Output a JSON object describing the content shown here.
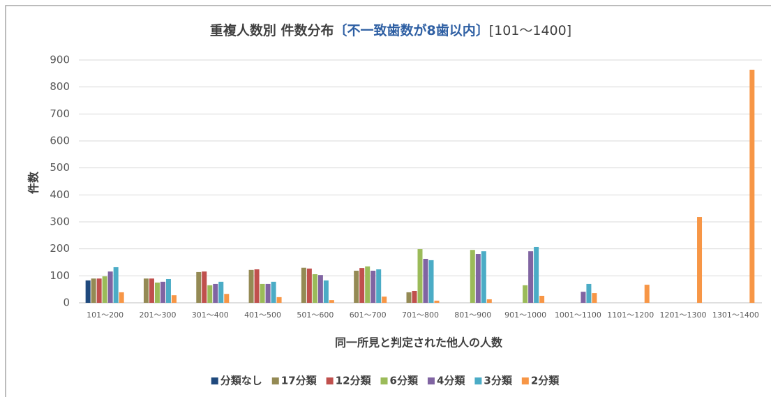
{
  "chart_data": {
    "type": "bar",
    "title": [
      "重複人数別 件数分布",
      "〔不一致歯数が8歯以内〕",
      "[101～1400]"
    ],
    "xlabel": "同一所見と判定された他人の人数",
    "ylabel": "件数",
    "categories": [
      "101～200",
      "201～300",
      "301～400",
      "401～500",
      "501～600",
      "601～700",
      "701～800",
      "801～900",
      "901～1000",
      "1001～1100",
      "1101～1200",
      "1201～1300",
      "1301～1400"
    ],
    "series": [
      {
        "name": "分類なし",
        "color": "#1f497d",
        "values": [
          83,
          0,
          0,
          0,
          0,
          0,
          0,
          0,
          0,
          0,
          0,
          0,
          0
        ]
      },
      {
        "name": "17分類",
        "color": "#948a54",
        "values": [
          90,
          90,
          114,
          122,
          130,
          119,
          39,
          0,
          0,
          0,
          0,
          0,
          0
        ]
      },
      {
        "name": "12分類",
        "color": "#c0504d",
        "values": [
          90,
          90,
          116,
          124,
          127,
          129,
          44,
          0,
          0,
          0,
          0,
          0,
          0
        ]
      },
      {
        "name": "6分類",
        "color": "#9bbb59",
        "values": [
          98,
          75,
          65,
          70,
          106,
          135,
          199,
          196,
          65,
          0,
          0,
          0,
          0
        ]
      },
      {
        "name": "4分類",
        "color": "#8064a2",
        "values": [
          116,
          78,
          70,
          70,
          103,
          119,
          163,
          181,
          191,
          41,
          0,
          0,
          0
        ]
      },
      {
        "name": "3分類",
        "color": "#4bacc6",
        "values": [
          132,
          88,
          78,
          78,
          83,
          124,
          158,
          191,
          207,
          70,
          0,
          0,
          0
        ]
      },
      {
        "name": "2分類",
        "color": "#f79646",
        "values": [
          39,
          28,
          33,
          21,
          10,
          23,
          8,
          13,
          26,
          36,
          67,
          318,
          864
        ]
      }
    ],
    "ylim": [
      0,
      900
    ],
    "yticks": [
      0,
      100,
      200,
      300,
      400,
      500,
      600,
      700,
      800,
      900
    ],
    "grid": true,
    "legend": "bottom"
  }
}
